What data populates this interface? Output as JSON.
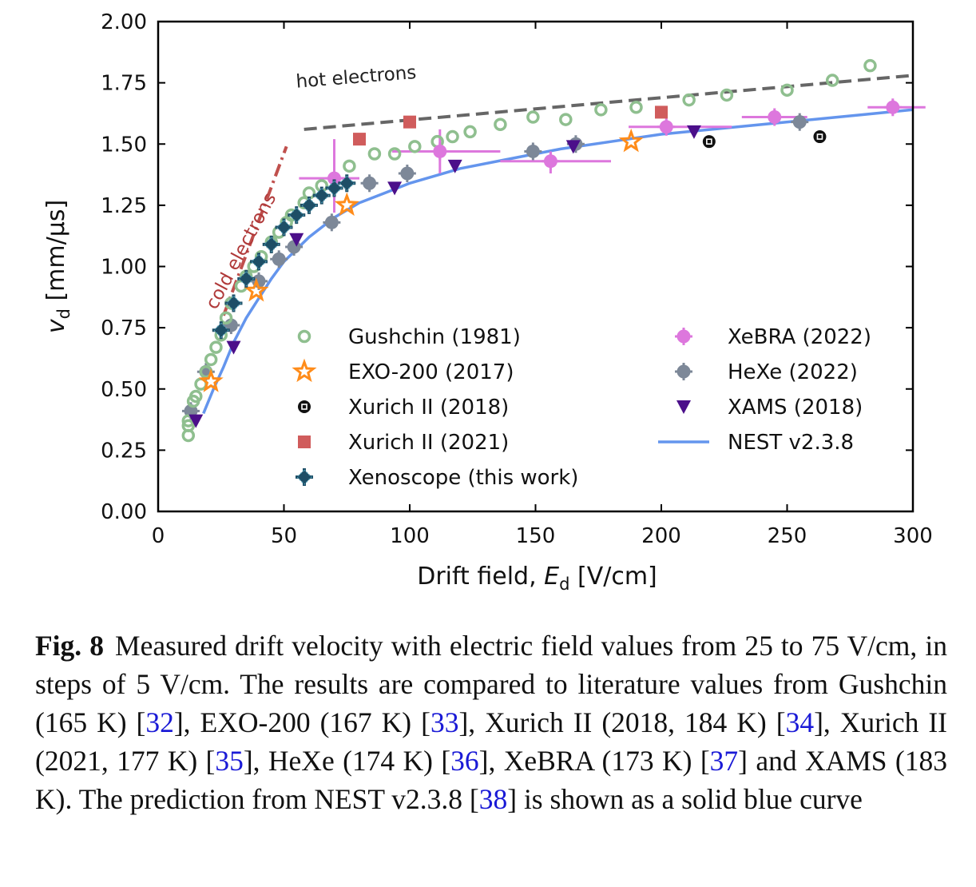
{
  "chart_data": {
    "type": "scatter",
    "xlabel": "Drift field, E_d [V/cm]",
    "xlabel_parts": {
      "text": "Drift field, ",
      "var": "E",
      "sub": "d",
      "unit": " [V/cm]"
    },
    "ylabel": "v_d [mm/µs]",
    "ylabel_parts": {
      "var": "v",
      "sub": "d",
      "unit": " [mm/µs]"
    },
    "xlim": [
      0,
      300
    ],
    "ylim": [
      0,
      2.0
    ],
    "x_ticks": [
      "0",
      "50",
      "100",
      "150",
      "200",
      "250",
      "300"
    ],
    "y_ticks": [
      "0.00",
      "0.25",
      "0.50",
      "0.75",
      "1.00",
      "1.25",
      "1.50",
      "1.75",
      "2.00"
    ],
    "grid": false,
    "legend_position": "lower-right",
    "annotations": [
      {
        "text": "hot electrons",
        "x": 55,
        "y": 1.73,
        "angle": -4.5,
        "color": "#222222"
      },
      {
        "text": "cold electrons",
        "x": 23,
        "y": 0.82,
        "angle": -62,
        "color": "#b03a3a"
      }
    ],
    "reference_lines": [
      {
        "name": "hot electrons",
        "color": "#666666",
        "dash": "dashed",
        "points": [
          [
            58,
            1.56
          ],
          [
            300,
            1.78
          ]
        ]
      },
      {
        "name": "cold electrons",
        "color": "#c0504d",
        "dash": "dashdot",
        "points": [
          [
            26,
            0.8
          ],
          [
            51,
            1.49
          ]
        ]
      }
    ],
    "series": [
      {
        "name": "Gushchin (1981)",
        "marker": "circle-open",
        "color": "#8fbf8f",
        "points": [
          [
            12,
            0.31
          ],
          [
            12,
            0.35
          ],
          [
            12,
            0.37
          ],
          [
            14,
            0.45
          ],
          [
            15,
            0.47
          ],
          [
            17,
            0.52
          ],
          [
            19,
            0.57
          ],
          [
            21,
            0.62
          ],
          [
            23,
            0.67
          ],
          [
            25,
            0.72
          ],
          [
            27,
            0.79
          ],
          [
            29,
            0.85
          ],
          [
            33,
            0.92
          ],
          [
            35,
            0.96
          ],
          [
            38,
            1.0
          ],
          [
            41,
            1.04
          ],
          [
            45,
            1.1
          ],
          [
            48,
            1.14
          ],
          [
            51,
            1.18
          ],
          [
            53,
            1.21
          ],
          [
            58,
            1.26
          ],
          [
            60,
            1.3
          ],
          [
            65,
            1.33
          ],
          [
            76,
            1.41
          ],
          [
            86,
            1.46
          ],
          [
            94,
            1.46
          ],
          [
            102,
            1.49
          ],
          [
            111,
            1.51
          ],
          [
            117,
            1.53
          ],
          [
            124,
            1.55
          ],
          [
            136,
            1.58
          ],
          [
            149,
            1.61
          ],
          [
            162,
            1.6
          ],
          [
            176,
            1.64
          ],
          [
            190,
            1.65
          ],
          [
            211,
            1.68
          ],
          [
            226,
            1.7
          ],
          [
            250,
            1.72
          ],
          [
            268,
            1.76
          ],
          [
            283,
            1.82
          ]
        ]
      },
      {
        "name": "EXO-200 (2017)",
        "marker": "star-open",
        "color": "#ff8c1a",
        "points": [
          [
            21,
            0.53
          ],
          [
            39,
            0.9
          ],
          [
            75,
            1.25
          ],
          [
            188,
            1.51
          ]
        ]
      },
      {
        "name": "Xurich II (2018)",
        "marker": "circle-filled-dot",
        "color": "#111111",
        "points": [
          [
            219,
            1.51
          ],
          [
            263,
            1.53
          ]
        ]
      },
      {
        "name": "Xurich II (2021)",
        "marker": "square",
        "color": "#d05c5c",
        "points": [
          [
            80,
            1.52
          ],
          [
            100,
            1.59
          ],
          [
            200,
            1.63
          ]
        ]
      },
      {
        "name": "Xenoscope (this work)",
        "marker": "cross-errorbar",
        "color": "#1e4e66",
        "points": [
          [
            25,
            0.74
          ],
          [
            30,
            0.85
          ],
          [
            35,
            0.95
          ],
          [
            40,
            1.02
          ],
          [
            45,
            1.09
          ],
          [
            50,
            1.16
          ],
          [
            55,
            1.21
          ],
          [
            60,
            1.25
          ],
          [
            65,
            1.29
          ],
          [
            70,
            1.32
          ],
          [
            75,
            1.34
          ]
        ]
      },
      {
        "name": "XeBRA (2022)",
        "marker": "circle-errorbar",
        "color": "#dd77dd",
        "xerr": [
          [
            56,
            80
          ],
          [
            93,
            136
          ],
          [
            136,
            180
          ],
          [
            187,
            228
          ],
          [
            232,
            258
          ],
          [
            282,
            305
          ]
        ],
        "yerr": [
          [
            1.22,
            1.52
          ],
          [
            1.38,
            1.56
          ],
          [
            1.38,
            1.47
          ],
          [
            1.55,
            1.59
          ],
          [
            1.59,
            1.63
          ],
          [
            1.63,
            1.68
          ]
        ],
        "points": [
          [
            70,
            1.36
          ],
          [
            112,
            1.47
          ],
          [
            156,
            1.43
          ],
          [
            202,
            1.57
          ],
          [
            245,
            1.61
          ],
          [
            292,
            1.65
          ]
        ]
      },
      {
        "name": "HeXe (2022)",
        "marker": "circle-errorbar",
        "color": "#7d8898",
        "points": [
          [
            13,
            0.41
          ],
          [
            19,
            0.57
          ],
          [
            29,
            0.76
          ],
          [
            40,
            0.94
          ],
          [
            48,
            1.03
          ],
          [
            54,
            1.08
          ],
          [
            69,
            1.18
          ],
          [
            84,
            1.34
          ],
          [
            99,
            1.38
          ],
          [
            149,
            1.47
          ],
          [
            166,
            1.5
          ],
          [
            255,
            1.59
          ]
        ]
      },
      {
        "name": "XAMS (2018)",
        "marker": "triangle-down",
        "color": "#4b0f8a",
        "points": [
          [
            15,
            0.37
          ],
          [
            30,
            0.67
          ],
          [
            55,
            1.11
          ],
          [
            94,
            1.32
          ],
          [
            118,
            1.41
          ],
          [
            165,
            1.49
          ],
          [
            213,
            1.55
          ]
        ]
      },
      {
        "name": "NEST v2.3.8",
        "marker": "line",
        "color": "#6495ed",
        "points": [
          [
            18,
            0.4
          ],
          [
            22,
            0.5
          ],
          [
            26,
            0.59
          ],
          [
            30,
            0.69
          ],
          [
            35,
            0.79
          ],
          [
            40,
            0.87
          ],
          [
            45,
            0.95
          ],
          [
            50,
            1.02
          ],
          [
            60,
            1.12
          ],
          [
            70,
            1.2
          ],
          [
            80,
            1.26
          ],
          [
            90,
            1.3
          ],
          [
            100,
            1.34
          ],
          [
            120,
            1.4
          ],
          [
            140,
            1.44
          ],
          [
            160,
            1.48
          ],
          [
            180,
            1.51
          ],
          [
            200,
            1.54
          ],
          [
            220,
            1.56
          ],
          [
            240,
            1.58
          ],
          [
            260,
            1.6
          ],
          [
            280,
            1.62
          ],
          [
            300,
            1.64
          ]
        ]
      }
    ]
  },
  "caption": {
    "label": "Fig. 8",
    "parts": [
      {
        "text": "Measured drift velocity with electric field values from 25 to 75 V/cm, in steps of 5 V/cm. The results are compared to literature values from Gushchin (165 K) ["
      },
      {
        "text": "32",
        "ref": true
      },
      {
        "text": "], EXO-200 (167 K) ["
      },
      {
        "text": "33",
        "ref": true
      },
      {
        "text": "], Xurich II (2018, 184 K) ["
      },
      {
        "text": "34",
        "ref": true
      },
      {
        "text": "], Xurich II (2021, 177 K) ["
      },
      {
        "text": "35",
        "ref": true
      },
      {
        "text": "], HeXe (174 K) ["
      },
      {
        "text": "36",
        "ref": true
      },
      {
        "text": "], XeBRA (173 K) ["
      },
      {
        "text": "37",
        "ref": true
      },
      {
        "text": "] and XAMS (183 K). The prediction from NEST v2.3.8 ["
      },
      {
        "text": "38",
        "ref": true
      },
      {
        "text": "] is shown as a solid blue curve"
      }
    ]
  }
}
